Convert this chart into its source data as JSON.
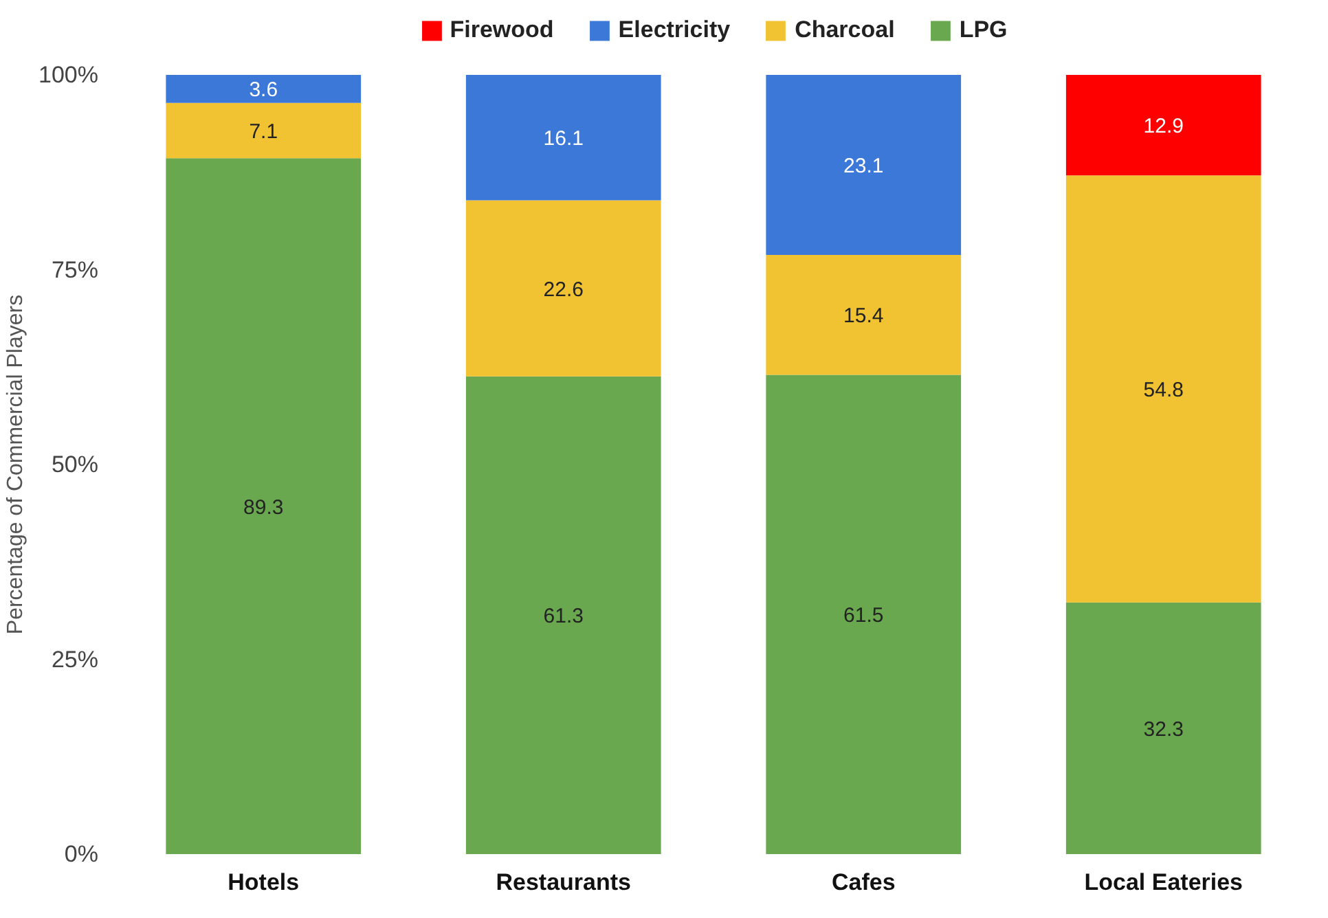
{
  "chart_data": {
    "type": "bar",
    "stacked": true,
    "ylabel": "Percentage of Commercial Players",
    "categories": [
      "Hotels",
      "Restaurants",
      "Cafes",
      "Local Eateries"
    ],
    "series": [
      {
        "name": "LPG",
        "color": "#6aa84f",
        "values": [
          89.3,
          61.3,
          61.5,
          32.3
        ]
      },
      {
        "name": "Charcoal",
        "color": "#f1c232",
        "values": [
          7.1,
          22.6,
          15.4,
          54.8
        ]
      },
      {
        "name": "Electricity",
        "color": "#3c78d8",
        "values": [
          3.6,
          16.1,
          23.1,
          null
        ]
      },
      {
        "name": "Firewood",
        "color": "#ff0000",
        "values": [
          null,
          null,
          null,
          12.9
        ]
      }
    ],
    "ylim": [
      0,
      100
    ],
    "yticks": [
      {
        "value": 0,
        "label": "0%"
      },
      {
        "value": 25,
        "label": "25%"
      },
      {
        "value": 50,
        "label": "50%"
      },
      {
        "value": 75,
        "label": "75%"
      },
      {
        "value": 100,
        "label": "100%"
      }
    ],
    "data_labels": true,
    "grid": false,
    "legend": "top"
  }
}
